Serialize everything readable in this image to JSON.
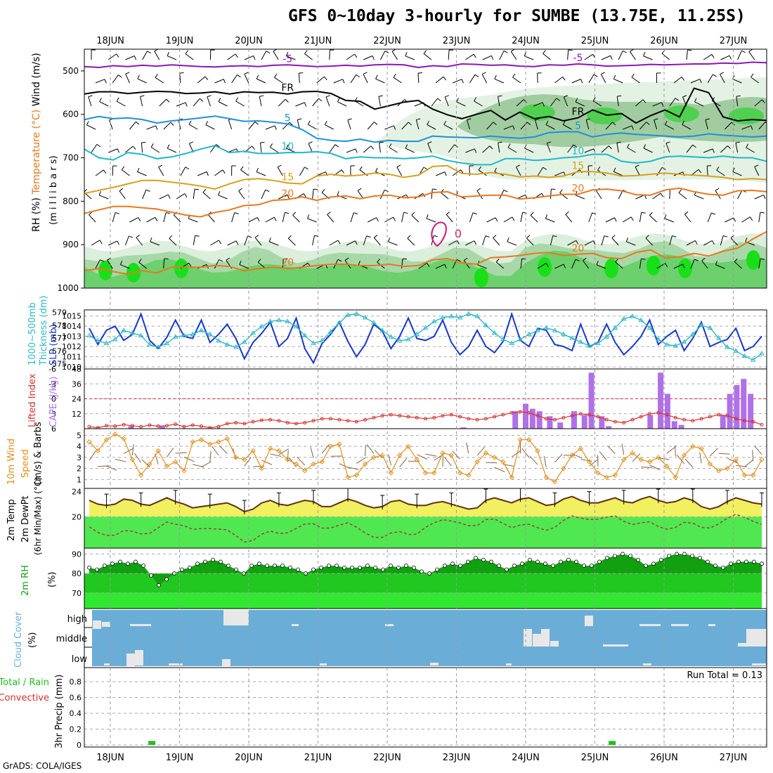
{
  "title": "GFS 0~10day 3-hourly for SUMBE (13.75E, 11.25S)",
  "credit": "GrADS: COLA/IGES",
  "colors": {
    "purple": "#8a17b8",
    "black": "#000000",
    "blue": "#1e90d8",
    "cyan": "#20b8c8",
    "gold": "#d8a020",
    "orange": "#e87820",
    "magenta": "#d01878",
    "slp": "#1838c8",
    "thick": "#30b8c8",
    "lifted": "#d83030",
    "cape": "#b070e8",
    "wind": "#e09020",
    "barb": "#8a6040",
    "temp_fill": "#f0f060",
    "dew_fill": "#50e850",
    "temp_line": "#603010",
    "dew_line": "#a04040",
    "rh_dark": "#10a010",
    "rh_green": "#20c820",
    "rh_light": "#30e830",
    "cloud_bg": "#6aaed8",
    "cloud_patch": "#e8e8e8",
    "precip": "#20c020"
  },
  "chart_data": [
    {
      "id": "upper",
      "type": "heatmap",
      "ylabel_parts": [
        "RH (%)",
        "Temperature (°C)",
        "Wind (m/s)"
      ],
      "ylabel_unit": "(m i l l i b a r s)",
      "ylim": [
        1000,
        450
      ],
      "y_ticks": [
        500,
        600,
        700,
        800,
        900,
        1000
      ],
      "x_ticks": [
        "18JUN",
        "19JUN",
        "20JUN",
        "21JUN",
        "22JUN",
        "23JUN",
        "24JUN",
        "25JUN",
        "26JUN",
        "27JUN"
      ],
      "contours": [
        {
          "label": "-5",
          "color": "purple",
          "p": [
            490,
            492,
            488,
            490,
            487,
            489,
            486,
            488,
            490,
            491,
            489,
            488,
            490,
            487,
            486,
            488,
            490,
            489,
            487,
            489,
            486,
            485,
            486,
            492,
            488,
            490,
            484,
            485,
            487,
            486,
            489,
            490,
            486,
            487,
            484,
            486,
            489,
            488,
            487,
            485,
            486,
            485,
            484,
            484,
            482,
            483,
            480,
            481
          ]
        },
        {
          "label": "FR",
          "color": "black",
          "p": [
            553,
            548,
            548,
            552,
            549,
            547,
            548,
            552,
            551,
            548,
            553,
            548,
            550,
            549,
            553,
            548,
            547,
            552,
            568,
            570,
            588,
            580,
            572,
            568,
            588,
            601,
            610,
            600,
            591,
            613,
            595,
            610,
            605,
            615,
            608,
            590,
            602,
            598,
            620,
            603,
            590,
            606,
            540,
            550,
            606,
            615,
            612,
            614
          ]
        },
        {
          "label": "5",
          "color": "blue",
          "p": [
            612,
            605,
            610,
            608,
            612,
            620,
            615,
            612,
            608,
            604,
            610,
            616,
            615,
            618,
            622,
            635,
            655,
            660,
            662,
            657,
            664,
            660,
            662,
            662,
            650,
            652,
            653,
            654,
            650,
            653,
            655,
            652,
            642,
            640,
            640,
            652,
            646,
            643,
            646,
            648,
            650,
            652,
            650,
            645,
            648,
            650,
            652,
            650
          ]
        },
        {
          "label": "10",
          "color": "cyan",
          "p": [
            680,
            700,
            705,
            688,
            692,
            702,
            698,
            690,
            680,
            672,
            688,
            685,
            690,
            690,
            688,
            688,
            686,
            690,
            702,
            698,
            700,
            700,
            702,
            700,
            696,
            706,
            712,
            716,
            716,
            702,
            702,
            706,
            704,
            700,
            698,
            692,
            692,
            708,
            712,
            708,
            698,
            696,
            698,
            700,
            696,
            700,
            700,
            708
          ]
        },
        {
          "label": "15",
          "color": "gold",
          "p": [
            782,
            775,
            768,
            760,
            752,
            752,
            756,
            760,
            765,
            772,
            760,
            750,
            748,
            752,
            758,
            760,
            742,
            738,
            742,
            740,
            735,
            738,
            745,
            740,
            720,
            718,
            736,
            738,
            734,
            738,
            744,
            742,
            745,
            742,
            732,
            732,
            735,
            742,
            741,
            738,
            735,
            738,
            740,
            742,
            745,
            750,
            748,
            750
          ]
        },
        {
          "label": "20",
          "color": "orange",
          "p": [
            828,
            820,
            812,
            812,
            815,
            818,
            825,
            832,
            836,
            826,
            820,
            810,
            808,
            798,
            796,
            790,
            798,
            790,
            788,
            794,
            788,
            786,
            792,
            790,
            780,
            778,
            790,
            788,
            786,
            786,
            795,
            792,
            788,
            784,
            784,
            774,
            772,
            776,
            785,
            786,
            774,
            770,
            778,
            784,
            786,
            776,
            775,
            778
          ]
        },
        {
          "label": "20",
          "color": "orange",
          "p": [
            960,
            955,
            962,
            968,
            960,
            965,
            952,
            952,
            952,
            948,
            950,
            960,
            955,
            952,
            955,
            952,
            948,
            945,
            945,
            948,
            948,
            945,
            950,
            948,
            935,
            932,
            942,
            945,
            930,
            928,
            925,
            920,
            918,
            925,
            922,
            920,
            930,
            932,
            918,
            912,
            930,
            928,
            920,
            926,
            915,
            908,
            888,
            870
          ]
        }
      ],
      "rh_features": "moist layer >900mb, mid-level moisture 600-800mb after 22JUN",
      "isolated_contour": "0",
      "series_labels": [
        "-5",
        "FR",
        "5",
        "10",
        "15",
        "20"
      ]
    },
    {
      "id": "slp",
      "type": "line",
      "ylabel": [
        "1000~500mb",
        "Thickness (dm)",
        "SLP (mb)"
      ],
      "left_ticks": [
        575,
        576,
        577,
        578,
        579
      ],
      "right_ticks": [
        1010,
        1011,
        1012,
        1013,
        1014,
        1015
      ],
      "left_lim": [
        574.6,
        579.2
      ],
      "right_lim": [
        1009.8,
        1015.6
      ],
      "series": [
        {
          "name": "SLP",
          "axis": "right",
          "values": [
            1013.8,
            1012.2,
            1013.6,
            1014.0,
            1012.6,
            1013.2,
            1015.2,
            1012.6,
            1011.8,
            1012.9,
            1014.6,
            1013.0,
            1012.8,
            1014.6,
            1012.4,
            1013.2,
            1014.2,
            1012.8,
            1010.8,
            1012.4,
            1013.3,
            1014.4,
            1012.0,
            1012.8,
            1014.8,
            1011.8,
            1010.4,
            1012.3,
            1013.2,
            1014.4,
            1012.5,
            1011.0,
            1012.2,
            1014.2,
            1013.5,
            1011.8,
            1013.0,
            1014.8,
            1012.8,
            1012.6,
            1013.0,
            1014.6,
            1012.4,
            1011.2,
            1012.0,
            1013.6,
            1012.0,
            1011.4,
            1012.5,
            1015.2,
            1012.6,
            1012.0,
            1013.8,
            1013.6,
            1012.2,
            1012.0,
            1011.6,
            1014.2,
            1012.0,
            1012.4,
            1014.2,
            1012.4,
            1011.2,
            1012.0,
            1013.0,
            1014.6,
            1012.2,
            1013.0,
            1013.6,
            1011.6,
            1012.8,
            1014.4,
            1012.0,
            1012.4,
            1012.7,
            1013.8,
            1011.6,
            1012.0,
            1013.0
          ]
        },
        {
          "name": "Thickness",
          "axis": "left",
          "values": [
            577.2,
            576.8,
            576.6,
            576.9,
            577.6,
            577.4,
            577.2,
            576.5,
            576.3,
            576.6,
            577.1,
            577.2,
            577.3,
            577.6,
            577.3,
            576.8,
            576.5,
            576.3,
            576.7,
            577.4,
            577.9,
            578.3,
            578.4,
            578.3,
            577.9,
            577.2,
            576.6,
            576.8,
            577.5,
            578.2,
            578.8,
            578.9,
            578.6,
            578.2,
            577.6,
            577.1,
            576.8,
            576.9,
            577.3,
            577.8,
            578.3,
            578.6,
            578.7,
            578.6,
            578.9,
            578.7,
            578.0,
            577.4,
            576.9,
            576.6,
            576.9,
            577.3,
            577.6,
            577.8,
            577.6,
            577.3,
            577.0,
            576.7,
            576.4,
            576.6,
            577.1,
            577.8,
            578.5,
            578.7,
            578.4,
            577.8,
            576.9,
            576.5,
            576.4,
            576.7,
            577.3,
            578.0,
            577.8,
            577.0,
            576.3,
            576.0,
            575.6,
            575.3,
            575.8
          ]
        }
      ]
    },
    {
      "id": "cape",
      "type": "bar",
      "ylabel_left": "Lifted Index",
      "ylabel_right": "CAPE (J/kg)",
      "li_ticks": [
        "-6",
        "-3",
        "0",
        "3",
        "6"
      ],
      "li_lim": [
        -6,
        6
      ],
      "cape_ticks": [
        12,
        24,
        36,
        48
      ],
      "cape_lim": [
        0,
        48
      ],
      "cape_values": [
        0,
        0,
        0,
        0,
        0,
        0,
        0,
        0,
        0,
        0,
        0,
        3,
        0,
        0,
        0,
        0,
        0,
        0,
        0,
        0,
        0,
        0,
        0,
        0,
        0,
        0,
        0,
        0,
        0,
        0,
        0,
        0,
        0,
        0,
        0,
        0,
        0,
        0,
        0,
        0,
        0,
        0,
        0,
        0,
        0,
        0,
        0,
        0,
        0,
        0,
        0,
        0,
        0,
        0,
        0,
        0,
        0,
        0,
        0,
        0,
        0,
        0,
        0,
        0,
        0,
        0,
        0,
        0,
        0,
        0,
        0,
        0,
        0,
        0,
        0,
        0,
        0,
        0,
        0,
        0,
        0,
        0,
        0,
        0,
        0,
        0,
        0
      ],
      "lifted_values": [
        5.6,
        5.8,
        5.4,
        5.5,
        5.2,
        5.4,
        5.6,
        5.3,
        5.5,
        5.4,
        5.1,
        5.6,
        5.3,
        5.5,
        5.8,
        5.6,
        5.0,
        4.8,
        5.0,
        4.6,
        4.3,
        4.2,
        4.4,
        4.8,
        5.0,
        4.8,
        4.4,
        4.0,
        4.0,
        4.2,
        4.4,
        4.6,
        4.2,
        3.8,
        3.4,
        3.2,
        3.4,
        3.6,
        3.8,
        4.0,
        3.8,
        3.4,
        3.2,
        3.6,
        4.0,
        4.2,
        4.0,
        3.6,
        3.2,
        2.8,
        2.6,
        2.8,
        3.4,
        4.0,
        4.2,
        3.8,
        3.4,
        3.0,
        3.2,
        3.6,
        4.2,
        4.6,
        4.8,
        4.2,
        3.6,
        3.0,
        2.8,
        3.2,
        3.8,
        4.2,
        4.4,
        4.0,
        3.6,
        3.2,
        3.4,
        4.0,
        4.4,
        4.6,
        5.2
      ]
    },
    {
      "id": "wind10m",
      "type": "line",
      "ylabel": [
        "10m Wind",
        "Speed",
        "(m/s) & Barbs"
      ],
      "ylabel_color_first": "orange",
      "ticks": [
        1,
        2,
        3,
        4,
        5
      ],
      "lim": [
        0.2,
        5.6
      ],
      "values": [
        4.4,
        3.6,
        4.6,
        5.1,
        4.7,
        2.8,
        1.4,
        2.4,
        3.6,
        2.2,
        2.6,
        1.8,
        4.4,
        4.6,
        4.2,
        4.4,
        4.7,
        3.0,
        2.8,
        3.6,
        2.0,
        3.8,
        3.6,
        2.8,
        2.4,
        1.8,
        2.4,
        2.6,
        4.0,
        4.2,
        1.2,
        1.4,
        2.4,
        3.0,
        3.2,
        1.6,
        3.2,
        4.0,
        2.8,
        1.6,
        1.6,
        3.4,
        3.2,
        1.6,
        1.4,
        2.6,
        3.4,
        3.0,
        2.6,
        1.2,
        4.6,
        4.6,
        3.6,
        1.2,
        0.8,
        2.0,
        3.2,
        3.8,
        2.6,
        1.6,
        1.2,
        1.4,
        2.8,
        3.4,
        2.8,
        2.6,
        3.0,
        2.2,
        1.2,
        3.2,
        4.0,
        3.8,
        2.4,
        1.8,
        2.0,
        2.8,
        1.4,
        1.4,
        2.8
      ]
    },
    {
      "id": "temp2m",
      "type": "area",
      "ylabel": [
        "2m Temp",
        "2m DewPt",
        "(6hr Min/Max) (°C)"
      ],
      "ticks": [
        20,
        24
      ],
      "lim": [
        15,
        24.5
      ],
      "temp": [
        22.6,
        22.0,
        21.8,
        22.0,
        22.8,
        22.6,
        22.0,
        21.8,
        22.4,
        23.0,
        22.4,
        22.0,
        21.4,
        21.6,
        21.8,
        22.0,
        22.2,
        21.6,
        20.8,
        21.2,
        22.2,
        22.6,
        22.0,
        21.8,
        22.2,
        22.6,
        22.4,
        21.6,
        21.6,
        22.2,
        22.8,
        22.4,
        21.8,
        21.4,
        21.6,
        22.4,
        22.6,
        22.0,
        21.8,
        21.8,
        22.2,
        22.4,
        22.0,
        21.6,
        21.2,
        21.4,
        22.6,
        23.0,
        22.6,
        22.2,
        22.8,
        23.0,
        22.4,
        21.8,
        22.0,
        22.8,
        23.2,
        22.6,
        22.2,
        22.2,
        22.6,
        23.0,
        22.4,
        22.2,
        22.8,
        23.2,
        22.6,
        22.2,
        22.4,
        23.0,
        22.6,
        21.6,
        21.2,
        21.6,
        22.4,
        23.0,
        22.6,
        22.2,
        22.0
      ]
    },
    {
      "id": "rh2m",
      "type": "area",
      "ylabel": [
        "2m RH",
        "(%)"
      ],
      "ticks": [
        70,
        80,
        90
      ],
      "lim": [
        62,
        93
      ],
      "values": [
        83,
        82,
        84,
        85,
        86,
        85,
        86,
        84,
        79,
        74,
        77,
        80,
        82,
        83,
        85,
        86,
        87,
        86,
        84,
        82,
        80,
        84,
        85,
        84,
        84,
        84,
        83,
        82,
        80,
        82,
        83,
        84,
        84,
        83,
        83,
        83,
        84,
        83,
        82,
        84,
        83,
        84,
        83,
        81,
        80,
        82,
        84,
        85,
        84,
        86,
        88,
        87,
        86,
        84,
        82,
        84,
        85,
        87,
        86,
        85,
        84,
        86,
        87,
        86,
        84,
        84,
        86,
        88,
        89,
        90,
        89,
        87,
        84,
        85,
        87,
        89,
        90,
        90,
        89,
        88,
        86,
        84,
        83,
        85,
        86,
        86,
        86,
        85
      ]
    },
    {
      "id": "cloud",
      "type": "heatmap",
      "ylabel": [
        "Cloud Cover",
        "(%)"
      ],
      "rows": [
        "high",
        "middle",
        "low"
      ]
    },
    {
      "id": "precip",
      "type": "bar",
      "ylabel_left_top": "Total / Rain",
      "ylabel_left_bottom": "Convective",
      "ylabel": "3hr Precip (mm)",
      "ticks": [
        "0",
        "0.2",
        "0.4",
        "0.6",
        "0.8"
      ],
      "lim": [
        0,
        0.95
      ],
      "run_total": "Run Total = 0.13",
      "bars": [
        {
          "day": 0.6,
          "value": 0.05
        },
        {
          "day": 7.25,
          "value": 0.05
        }
      ]
    }
  ]
}
